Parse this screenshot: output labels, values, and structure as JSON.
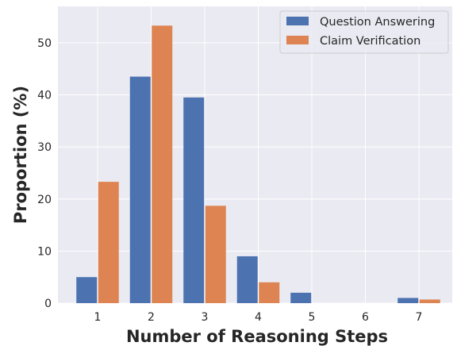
{
  "chart_data": {
    "type": "bar",
    "categories": [
      "1",
      "2",
      "3",
      "4",
      "5",
      "6",
      "7"
    ],
    "series": [
      {
        "name": "Question Answering",
        "color": "#4c72b0",
        "values": [
          5.0,
          43.5,
          39.5,
          9.0,
          2.0,
          0.0,
          1.0
        ]
      },
      {
        "name": "Claim Verification",
        "color": "#dd8452",
        "values": [
          23.3,
          53.3,
          18.7,
          4.0,
          0.0,
          0.0,
          0.7
        ]
      }
    ],
    "xlabel": "Number of Reasoning Steps",
    "ylabel": "Proportion (%)",
    "ylim": [
      0,
      57
    ],
    "yticks": [
      0,
      10,
      20,
      30,
      40,
      50
    ],
    "grid": true,
    "legend_position": "top-right",
    "background_color": "#eaeaf2"
  }
}
